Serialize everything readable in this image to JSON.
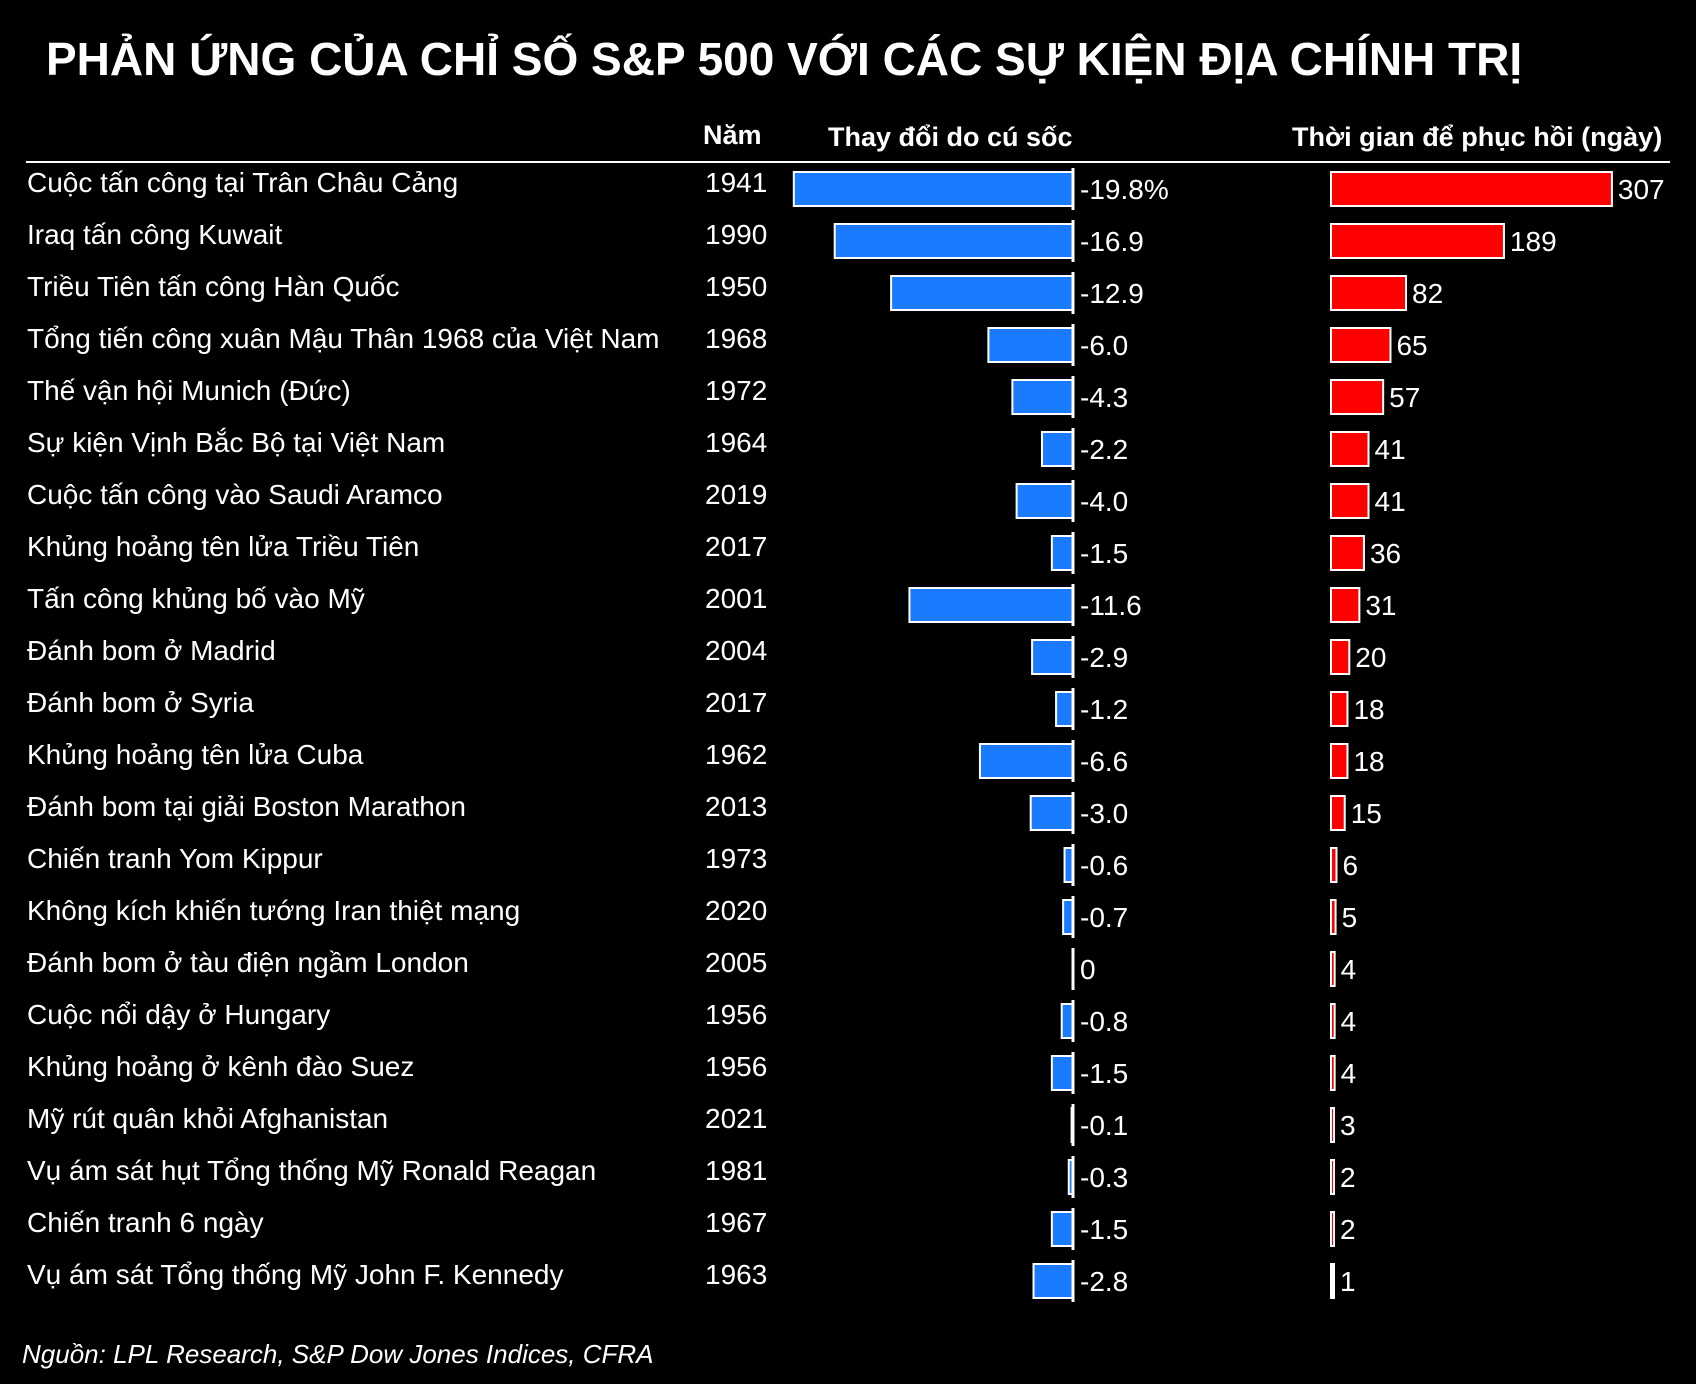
{
  "title": "PHẢN ỨNG CỦA CHỈ SỐ S&P 500 VỚI CÁC SỰ KIỆN ĐỊA CHÍNH TRỊ",
  "headers": {
    "year": "Năm",
    "shock": "Thay đổi do cú sốc",
    "recovery": "Thời gian để phục hồi (ngày)"
  },
  "source": "Nguồn: LPL Research, S&P Dow Jones Indices, CFRA",
  "colors": {
    "background": "#000000",
    "shock_bar": "#1a7bff",
    "recovery_bar": "#ff0000",
    "text": "#ffffff"
  },
  "chart_data": {
    "type": "bar",
    "title": "PHẢN ỨNG CỦA CHỈ SỐ S&P 500 VỚI CÁC SỰ KIỆN ĐỊA CHÍNH TRỊ",
    "categories": [
      "Cuộc tấn công tại Trân Châu Cảng",
      "Iraq tấn công Kuwait",
      "Triều Tiên tấn công Hàn Quốc",
      "Tổng tiến công xuân Mậu Thân 1968 của Việt Nam",
      "Thế vận hội Munich (Đức)",
      "Sự kiện Vịnh Bắc Bộ tại Việt Nam",
      "Cuộc tấn công vào Saudi Aramco",
      "Khủng hoảng tên lửa Triều Tiên",
      "Tấn công khủng bố vào Mỹ",
      "Đánh bom ở Madrid",
      "Đánh bom ở Syria",
      "Khủng hoảng tên lửa Cuba",
      "Đánh bom tại giải Boston Marathon",
      "Chiến tranh Yom Kippur",
      "Không kích khiến tướng Iran thiệt mạng",
      "Đánh bom ở tàu điện ngầm London",
      "Cuộc nổi dậy ở Hungary",
      "Khủng hoảng ở kênh đào Suez",
      "Mỹ rút quân khỏi Afghanistan",
      "Vụ ám sát hụt Tổng thống Mỹ Ronald Reagan",
      "Chiến tranh 6 ngày",
      "Vụ ám sát Tổng thống Mỹ John F. Kennedy"
    ],
    "years": [
      "1941",
      "1990",
      "1950",
      "1968",
      "1972",
      "1964",
      "2019",
      "2017",
      "2001",
      "2004",
      "2017",
      "1962",
      "2013",
      "1973",
      "2020",
      "2005",
      "1956",
      "1956",
      "2021",
      "1981",
      "1967",
      "1963"
    ],
    "series": [
      {
        "name": "Thay đổi do cú sốc",
        "values": [
          -19.8,
          -16.9,
          -12.9,
          -6.0,
          -4.3,
          -2.2,
          -4.0,
          -1.5,
          -11.6,
          -2.9,
          -1.2,
          -6.6,
          -3.0,
          -0.6,
          -0.7,
          0,
          -0.8,
          -1.5,
          -0.1,
          -0.3,
          -1.5,
          -2.8
        ],
        "labels": [
          "-19.8%",
          "-16.9",
          "-12.9",
          "-6.0",
          "-4.3",
          "-2.2",
          "-4.0",
          "-1.5",
          "-11.6",
          "-2.9",
          "-1.2",
          "-6.6",
          "-3.0",
          "-0.6",
          "-0.7",
          "0",
          "-0.8",
          "-1.5",
          "-0.1",
          "-0.3",
          "-1.5",
          "-2.8"
        ]
      },
      {
        "name": "Thời gian để phục hồi (ngày)",
        "values": [
          307,
          189,
          82,
          65,
          57,
          41,
          41,
          36,
          31,
          20,
          18,
          18,
          15,
          6,
          5,
          4,
          4,
          4,
          3,
          2,
          2,
          1
        ],
        "labels": [
          "307",
          "189",
          "82",
          "65",
          "57",
          "41",
          "41",
          "36",
          "31",
          "20",
          "18",
          "18",
          "15",
          "6",
          "5",
          "4",
          "4",
          "4",
          "3",
          "2",
          "2",
          "1"
        ]
      }
    ],
    "grid": false,
    "legend": "none"
  }
}
